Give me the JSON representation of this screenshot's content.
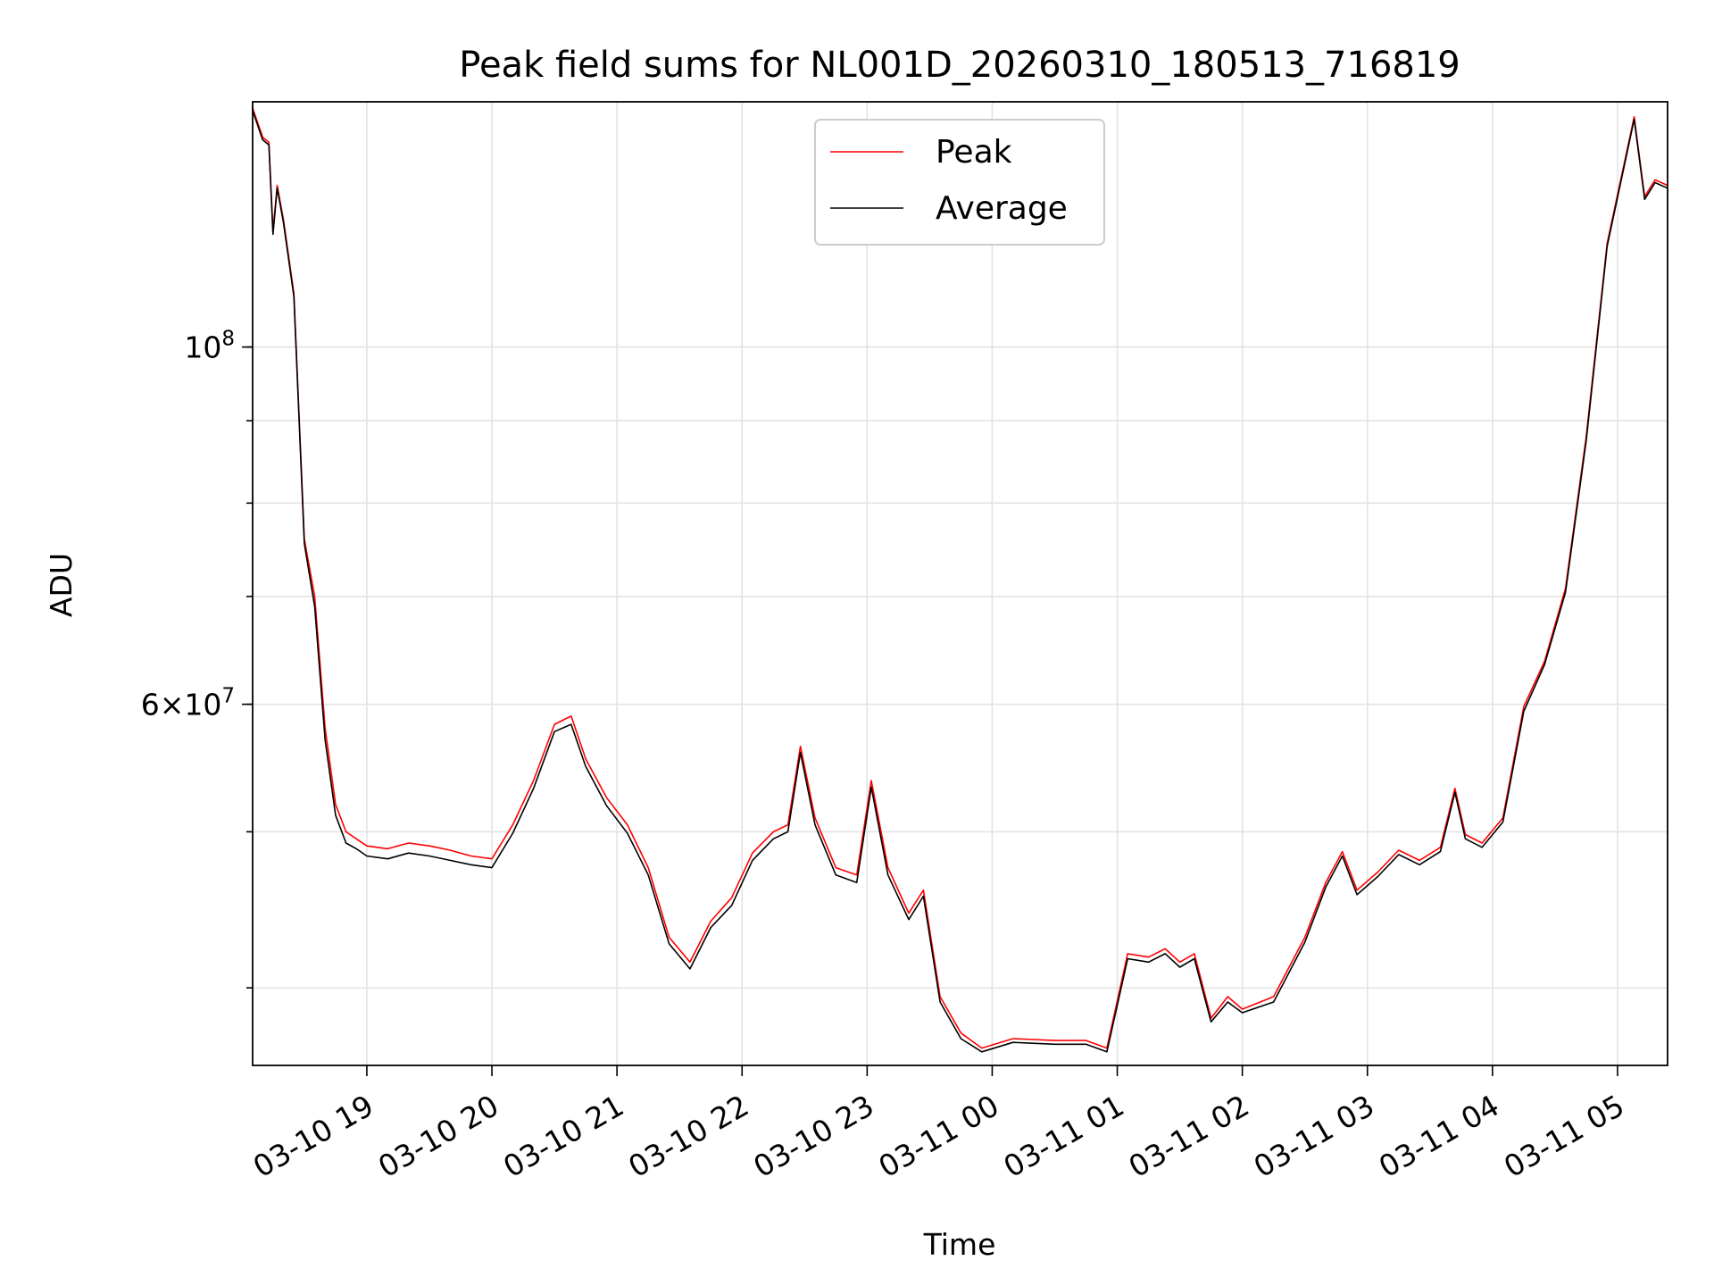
{
  "chart_data": {
    "type": "line",
    "title": "Peak field sums for NL001D_20260310_180513_716819",
    "xlabel": "Time",
    "ylabel": "ADU",
    "x_axis_type": "datetime",
    "y_scale": "log",
    "xlim": [
      "2026-03-10 18:05:13",
      "2026-03-11 05:24:00"
    ],
    "ylim": [
      35800000,
      142000000
    ],
    "x_ticks": [
      {
        "value": "2026-03-10 19:00",
        "label": "03-10 19"
      },
      {
        "value": "2026-03-10 20:00",
        "label": "03-10 20"
      },
      {
        "value": "2026-03-10 21:00",
        "label": "03-10 21"
      },
      {
        "value": "2026-03-10 22:00",
        "label": "03-10 22"
      },
      {
        "value": "2026-03-10 23:00",
        "label": "03-10 23"
      },
      {
        "value": "2026-03-11 00:00",
        "label": "03-11 00"
      },
      {
        "value": "2026-03-11 01:00",
        "label": "03-11 01"
      },
      {
        "value": "2026-03-11 02:00",
        "label": "03-11 02"
      },
      {
        "value": "2026-03-11 03:00",
        "label": "03-11 03"
      },
      {
        "value": "2026-03-11 04:00",
        "label": "03-11 04"
      },
      {
        "value": "2026-03-11 05:00",
        "label": "03-11 05"
      }
    ],
    "y_major_ticks": [
      {
        "value": 100000000,
        "base": "10",
        "exp": "8"
      },
      {
        "value": 60000000,
        "mantissa": "6",
        "base": "10",
        "exp": "7"
      }
    ],
    "y_minor_ticks": [
      40000000,
      50000000,
      60000000,
      70000000,
      80000000,
      90000000,
      100000000
    ],
    "grid": true,
    "legend_position": "top-center",
    "series": [
      {
        "name": "Peak",
        "color": "#ff0000",
        "x": [
          "2026-03-10 18:05",
          "2026-03-10 18:10",
          "2026-03-10 18:13",
          "2026-03-10 18:15",
          "2026-03-10 18:17",
          "2026-03-10 18:20",
          "2026-03-10 18:25",
          "2026-03-10 18:30",
          "2026-03-10 18:35",
          "2026-03-10 18:40",
          "2026-03-10 18:45",
          "2026-03-10 18:50",
          "2026-03-10 18:55",
          "2026-03-10 19:00",
          "2026-03-10 19:10",
          "2026-03-10 19:20",
          "2026-03-10 19:30",
          "2026-03-10 19:40",
          "2026-03-10 19:50",
          "2026-03-10 20:00",
          "2026-03-10 20:10",
          "2026-03-10 20:20",
          "2026-03-10 20:30",
          "2026-03-10 20:38",
          "2026-03-10 20:45",
          "2026-03-10 20:55",
          "2026-03-10 21:05",
          "2026-03-10 21:15",
          "2026-03-10 21:25",
          "2026-03-10 21:35",
          "2026-03-10 21:45",
          "2026-03-10 21:55",
          "2026-03-10 22:05",
          "2026-03-10 22:15",
          "2026-03-10 22:22",
          "2026-03-10 22:28",
          "2026-03-10 22:35",
          "2026-03-10 22:45",
          "2026-03-10 22:55",
          "2026-03-10 23:02",
          "2026-03-10 23:10",
          "2026-03-10 23:20",
          "2026-03-10 23:27",
          "2026-03-10 23:35",
          "2026-03-10 23:45",
          "2026-03-10 23:55",
          "2026-03-11 00:10",
          "2026-03-11 00:30",
          "2026-03-11 00:45",
          "2026-03-11 00:55",
          "2026-03-11 01:05",
          "2026-03-11 01:15",
          "2026-03-11 01:23",
          "2026-03-11 01:30",
          "2026-03-11 01:37",
          "2026-03-11 01:45",
          "2026-03-11 01:53",
          "2026-03-11 02:00",
          "2026-03-11 02:15",
          "2026-03-11 02:30",
          "2026-03-11 02:40",
          "2026-03-11 02:48",
          "2026-03-11 02:55",
          "2026-03-11 03:05",
          "2026-03-11 03:15",
          "2026-03-11 03:25",
          "2026-03-11 03:35",
          "2026-03-11 03:42",
          "2026-03-11 03:47",
          "2026-03-11 03:55",
          "2026-03-11 04:05",
          "2026-03-11 04:15",
          "2026-03-11 04:25",
          "2026-03-11 04:35",
          "2026-03-11 04:45",
          "2026-03-11 04:55",
          "2026-03-11 05:08",
          "2026-03-11 05:13",
          "2026-03-11 05:18",
          "2026-03-11 05:24"
        ],
        "values": [
          141000000,
          135000000,
          134000000,
          118000000,
          126000000,
          120000000,
          108000000,
          76000000,
          70000000,
          58000000,
          52000000,
          50000000,
          49500000,
          49000000,
          48800000,
          49200000,
          49000000,
          48700000,
          48300000,
          48100000,
          50500000,
          53800000,
          58300000,
          59000000,
          55500000,
          52500000,
          50500000,
          47500000,
          43000000,
          41500000,
          44000000,
          45500000,
          48500000,
          50000000,
          50500000,
          56500000,
          51000000,
          47500000,
          47000000,
          53800000,
          47500000,
          44500000,
          46000000,
          39500000,
          37500000,
          36700000,
          37200000,
          37100000,
          37100000,
          36700000,
          42000000,
          41800000,
          42300000,
          41500000,
          42000000,
          38300000,
          39500000,
          38800000,
          39500000,
          43000000,
          46500000,
          48600000,
          46000000,
          47200000,
          48700000,
          48000000,
          48900000,
          53200000,
          49800000,
          49200000,
          51000000,
          59800000,
          63800000,
          70800000,
          88000000,
          116000000,
          139000000,
          124000000,
          127000000,
          126000000
        ]
      },
      {
        "name": "Average",
        "color": "#000000",
        "x": [
          "2026-03-10 18:05",
          "2026-03-10 18:10",
          "2026-03-10 18:13",
          "2026-03-10 18:15",
          "2026-03-10 18:17",
          "2026-03-10 18:20",
          "2026-03-10 18:25",
          "2026-03-10 18:30",
          "2026-03-10 18:35",
          "2026-03-10 18:40",
          "2026-03-10 18:45",
          "2026-03-10 18:50",
          "2026-03-10 18:55",
          "2026-03-10 19:00",
          "2026-03-10 19:10",
          "2026-03-10 19:20",
          "2026-03-10 19:30",
          "2026-03-10 19:40",
          "2026-03-10 19:50",
          "2026-03-10 20:00",
          "2026-03-10 20:10",
          "2026-03-10 20:20",
          "2026-03-10 20:30",
          "2026-03-10 20:38",
          "2026-03-10 20:45",
          "2026-03-10 20:55",
          "2026-03-10 21:05",
          "2026-03-10 21:15",
          "2026-03-10 21:25",
          "2026-03-10 21:35",
          "2026-03-10 21:45",
          "2026-03-10 21:55",
          "2026-03-10 22:05",
          "2026-03-10 22:15",
          "2026-03-10 22:22",
          "2026-03-10 22:28",
          "2026-03-10 22:35",
          "2026-03-10 22:45",
          "2026-03-10 22:55",
          "2026-03-10 23:02",
          "2026-03-10 23:10",
          "2026-03-10 23:20",
          "2026-03-10 23:27",
          "2026-03-10 23:35",
          "2026-03-10 23:45",
          "2026-03-10 23:55",
          "2026-03-11 00:10",
          "2026-03-11 00:30",
          "2026-03-11 00:45",
          "2026-03-11 00:55",
          "2026-03-11 01:05",
          "2026-03-11 01:15",
          "2026-03-11 01:23",
          "2026-03-11 01:30",
          "2026-03-11 01:37",
          "2026-03-11 01:45",
          "2026-03-11 01:53",
          "2026-03-11 02:00",
          "2026-03-11 02:15",
          "2026-03-11 02:30",
          "2026-03-11 02:40",
          "2026-03-11 02:48",
          "2026-03-11 02:55",
          "2026-03-11 03:05",
          "2026-03-11 03:15",
          "2026-03-11 03:25",
          "2026-03-11 03:35",
          "2026-03-11 03:42",
          "2026-03-11 03:47",
          "2026-03-11 03:55",
          "2026-03-11 04:05",
          "2026-03-11 04:15",
          "2026-03-11 04:25",
          "2026-03-11 04:35",
          "2026-03-11 04:45",
          "2026-03-11 04:55",
          "2026-03-11 05:08",
          "2026-03-11 05:13",
          "2026-03-11 05:18",
          "2026-03-11 05:24"
        ],
        "values": [
          140500000,
          134500000,
          133500000,
          117500000,
          125500000,
          119500000,
          107500000,
          75500000,
          69000000,
          57000000,
          51200000,
          49200000,
          48800000,
          48300000,
          48100000,
          48500000,
          48300000,
          48000000,
          47700000,
          47500000,
          49900000,
          53200000,
          57700000,
          58300000,
          54900000,
          51900000,
          49900000,
          47000000,
          42600000,
          41100000,
          43600000,
          45000000,
          48000000,
          49500000,
          50000000,
          56000000,
          50500000,
          47000000,
          46500000,
          53300000,
          47000000,
          44100000,
          45600000,
          39200000,
          37200000,
          36500000,
          37000000,
          36900000,
          36900000,
          36500000,
          41700000,
          41500000,
          42000000,
          41200000,
          41700000,
          38100000,
          39200000,
          38600000,
          39200000,
          42700000,
          46200000,
          48300000,
          45700000,
          46900000,
          48400000,
          47700000,
          48600000,
          52900000,
          49500000,
          48900000,
          50700000,
          59400000,
          63500000,
          70400000,
          87500000,
          115500000,
          138500000,
          123500000,
          126500000,
          125500000
        ]
      }
    ]
  }
}
